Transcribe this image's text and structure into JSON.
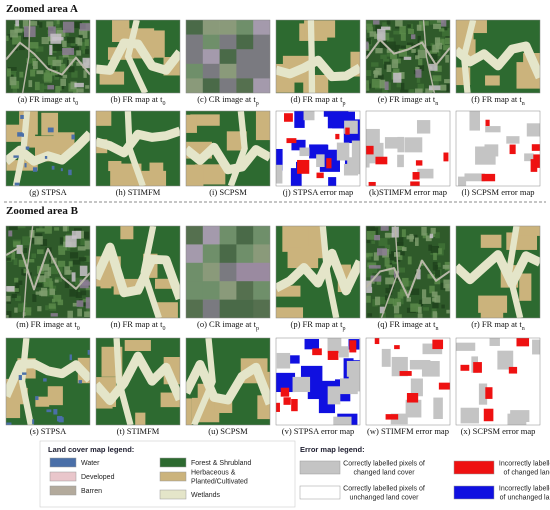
{
  "sections": [
    {
      "title": "Zoomed area A",
      "panels": [
        {
          "text": "(a) FR image at t",
          "sub": "0"
        },
        {
          "text": "(b) FR map at t",
          "sub": "0"
        },
        {
          "text": "(c) CR image at t",
          "sub": "p"
        },
        {
          "text": "(d) FR map at t",
          "sub": "p"
        },
        {
          "text": "(e) FR image at t",
          "sub": "n"
        },
        {
          "text": "(f) FR map at t",
          "sub": "n"
        },
        {
          "text": "(g) STPSA"
        },
        {
          "text": "(h) STIMFM"
        },
        {
          "text": "(i) SCPSM"
        },
        {
          "text": "(j) STPSA error map"
        },
        {
          "text": "(k)STIMFM error map"
        },
        {
          "text": "(l) SCPSM error map"
        }
      ]
    },
    {
      "title": "Zoomed area B",
      "panels": [
        {
          "text": "(m) FR image at t",
          "sub": "0"
        },
        {
          "text": "(n) FR map at t",
          "sub": "0"
        },
        {
          "text": "(o) CR image at t",
          "sub": "p"
        },
        {
          "text": "(p) FR map at t",
          "sub": "p"
        },
        {
          "text": "(q) FR image at t",
          "sub": "n"
        },
        {
          "text": "(r) FR map at t",
          "sub": "n"
        },
        {
          "text": "(s) STPSA"
        },
        {
          "text": "(t) STIMFM"
        },
        {
          "text": "(u) SCPSM"
        },
        {
          "text": "(v) STPSA error map"
        },
        {
          "text": "(w) STIMFM error map"
        },
        {
          "text": "(x) SCPSM error map"
        }
      ]
    }
  ],
  "land_legend": {
    "title": "Land cover map legend:",
    "items": [
      {
        "lines": [
          "Water"
        ],
        "color": "#4a6fa8"
      },
      {
        "lines": [
          "Developed"
        ],
        "color": "#e9c6cb"
      },
      {
        "lines": [
          "Barren"
        ],
        "color": "#b3aa9c"
      },
      {
        "lines": [
          "Forest & Shrubland"
        ],
        "color": "#2d6a30"
      },
      {
        "lines": [
          "Herbaceous &",
          "Planted/Cultivated"
        ],
        "color": "#cbb37c"
      },
      {
        "lines": [
          "Wetlands"
        ],
        "color": "#e4e5c9"
      }
    ]
  },
  "error_legend": {
    "title": "Error map legend:",
    "items": [
      {
        "lines": [
          "Correctly labelled pixels of",
          "changed land cover"
        ],
        "color": "#c4c4c4"
      },
      {
        "lines": [
          "Correctly labelled pixels of",
          "unchanged land cover"
        ],
        "color": "#ffffff"
      },
      {
        "lines": [
          "Incorrectly labelled pixels",
          "of changed land cover"
        ],
        "color": "#ee1111"
      },
      {
        "lines": [
          "Incorrectly labelled pixels",
          "of unchanged land cover"
        ],
        "color": "#1010e0"
      }
    ]
  }
}
